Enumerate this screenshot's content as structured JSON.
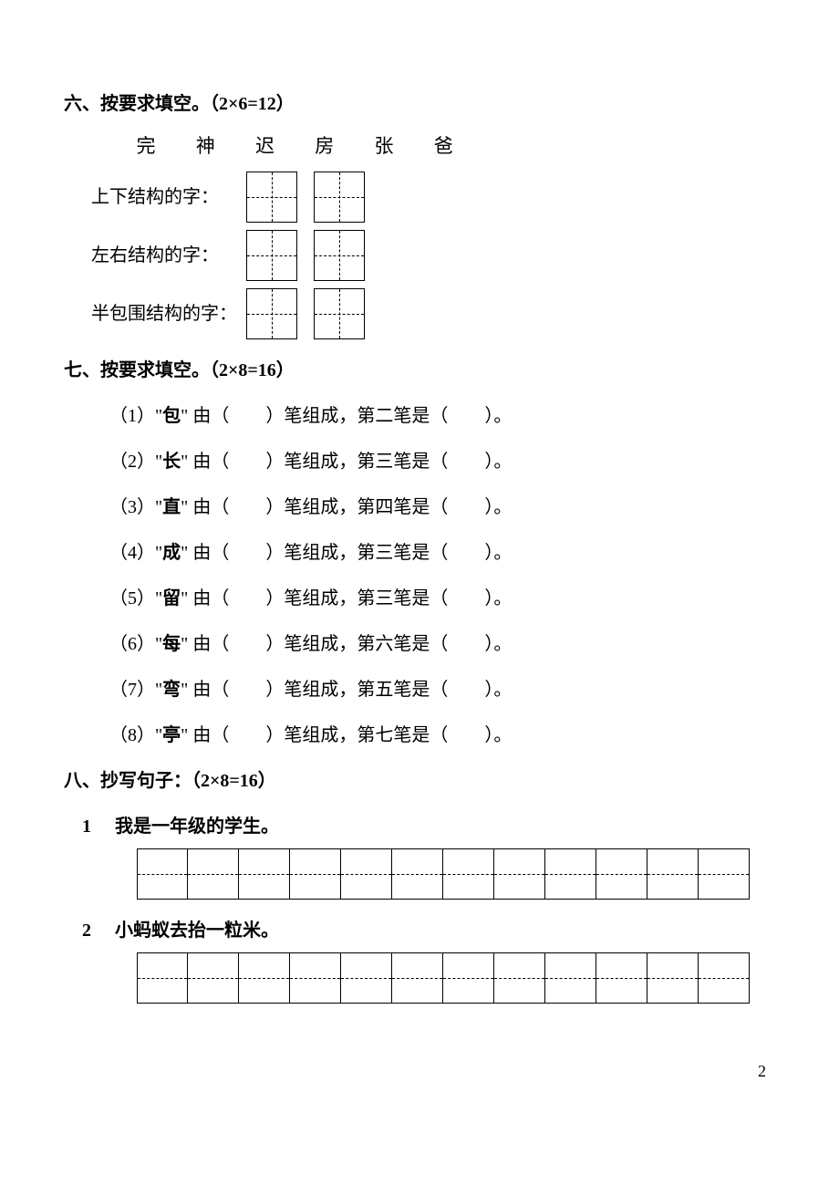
{
  "section6": {
    "title": "六、按要求填空。（2×6=12）",
    "chars": [
      "完",
      "神",
      "迟",
      "房",
      "张",
      "爸"
    ],
    "rows": [
      {
        "label": "上下结构的字："
      },
      {
        "label": "左右结构的字："
      },
      {
        "label": "半包围结构的字："
      }
    ]
  },
  "section7": {
    "title": "七、按要求填空。（2×8=16）",
    "items": [
      {
        "num": "（1）",
        "char": "包",
        "stroke_desc": "第二笔是"
      },
      {
        "num": "（2）",
        "char": "长",
        "stroke_desc": "第三笔是"
      },
      {
        "num": "（3）",
        "char": "直",
        "stroke_desc": "第四笔是"
      },
      {
        "num": "（4）",
        "char": "成",
        "stroke_desc": "第三笔是"
      },
      {
        "num": "（5）",
        "char": "留",
        "stroke_desc": "第三笔是"
      },
      {
        "num": "（6）",
        "char": "每",
        "stroke_desc": "第六笔是"
      },
      {
        "num": "（7）",
        "char": "弯",
        "stroke_desc": "第五笔是"
      },
      {
        "num": "（8）",
        "char": "亭",
        "stroke_desc": "第七笔是"
      }
    ],
    "template_mid": "由（　　）笔组成，",
    "template_end": "（　　）。"
  },
  "section8": {
    "title": "八、抄写句子：（2×8=16）",
    "sentences": [
      {
        "num": "1",
        "text": "我是一年级的学生。"
      },
      {
        "num": "2",
        "text": "小蚂蚁去抬一粒米。"
      }
    ],
    "grid_cells": 12
  },
  "page_number": "2"
}
